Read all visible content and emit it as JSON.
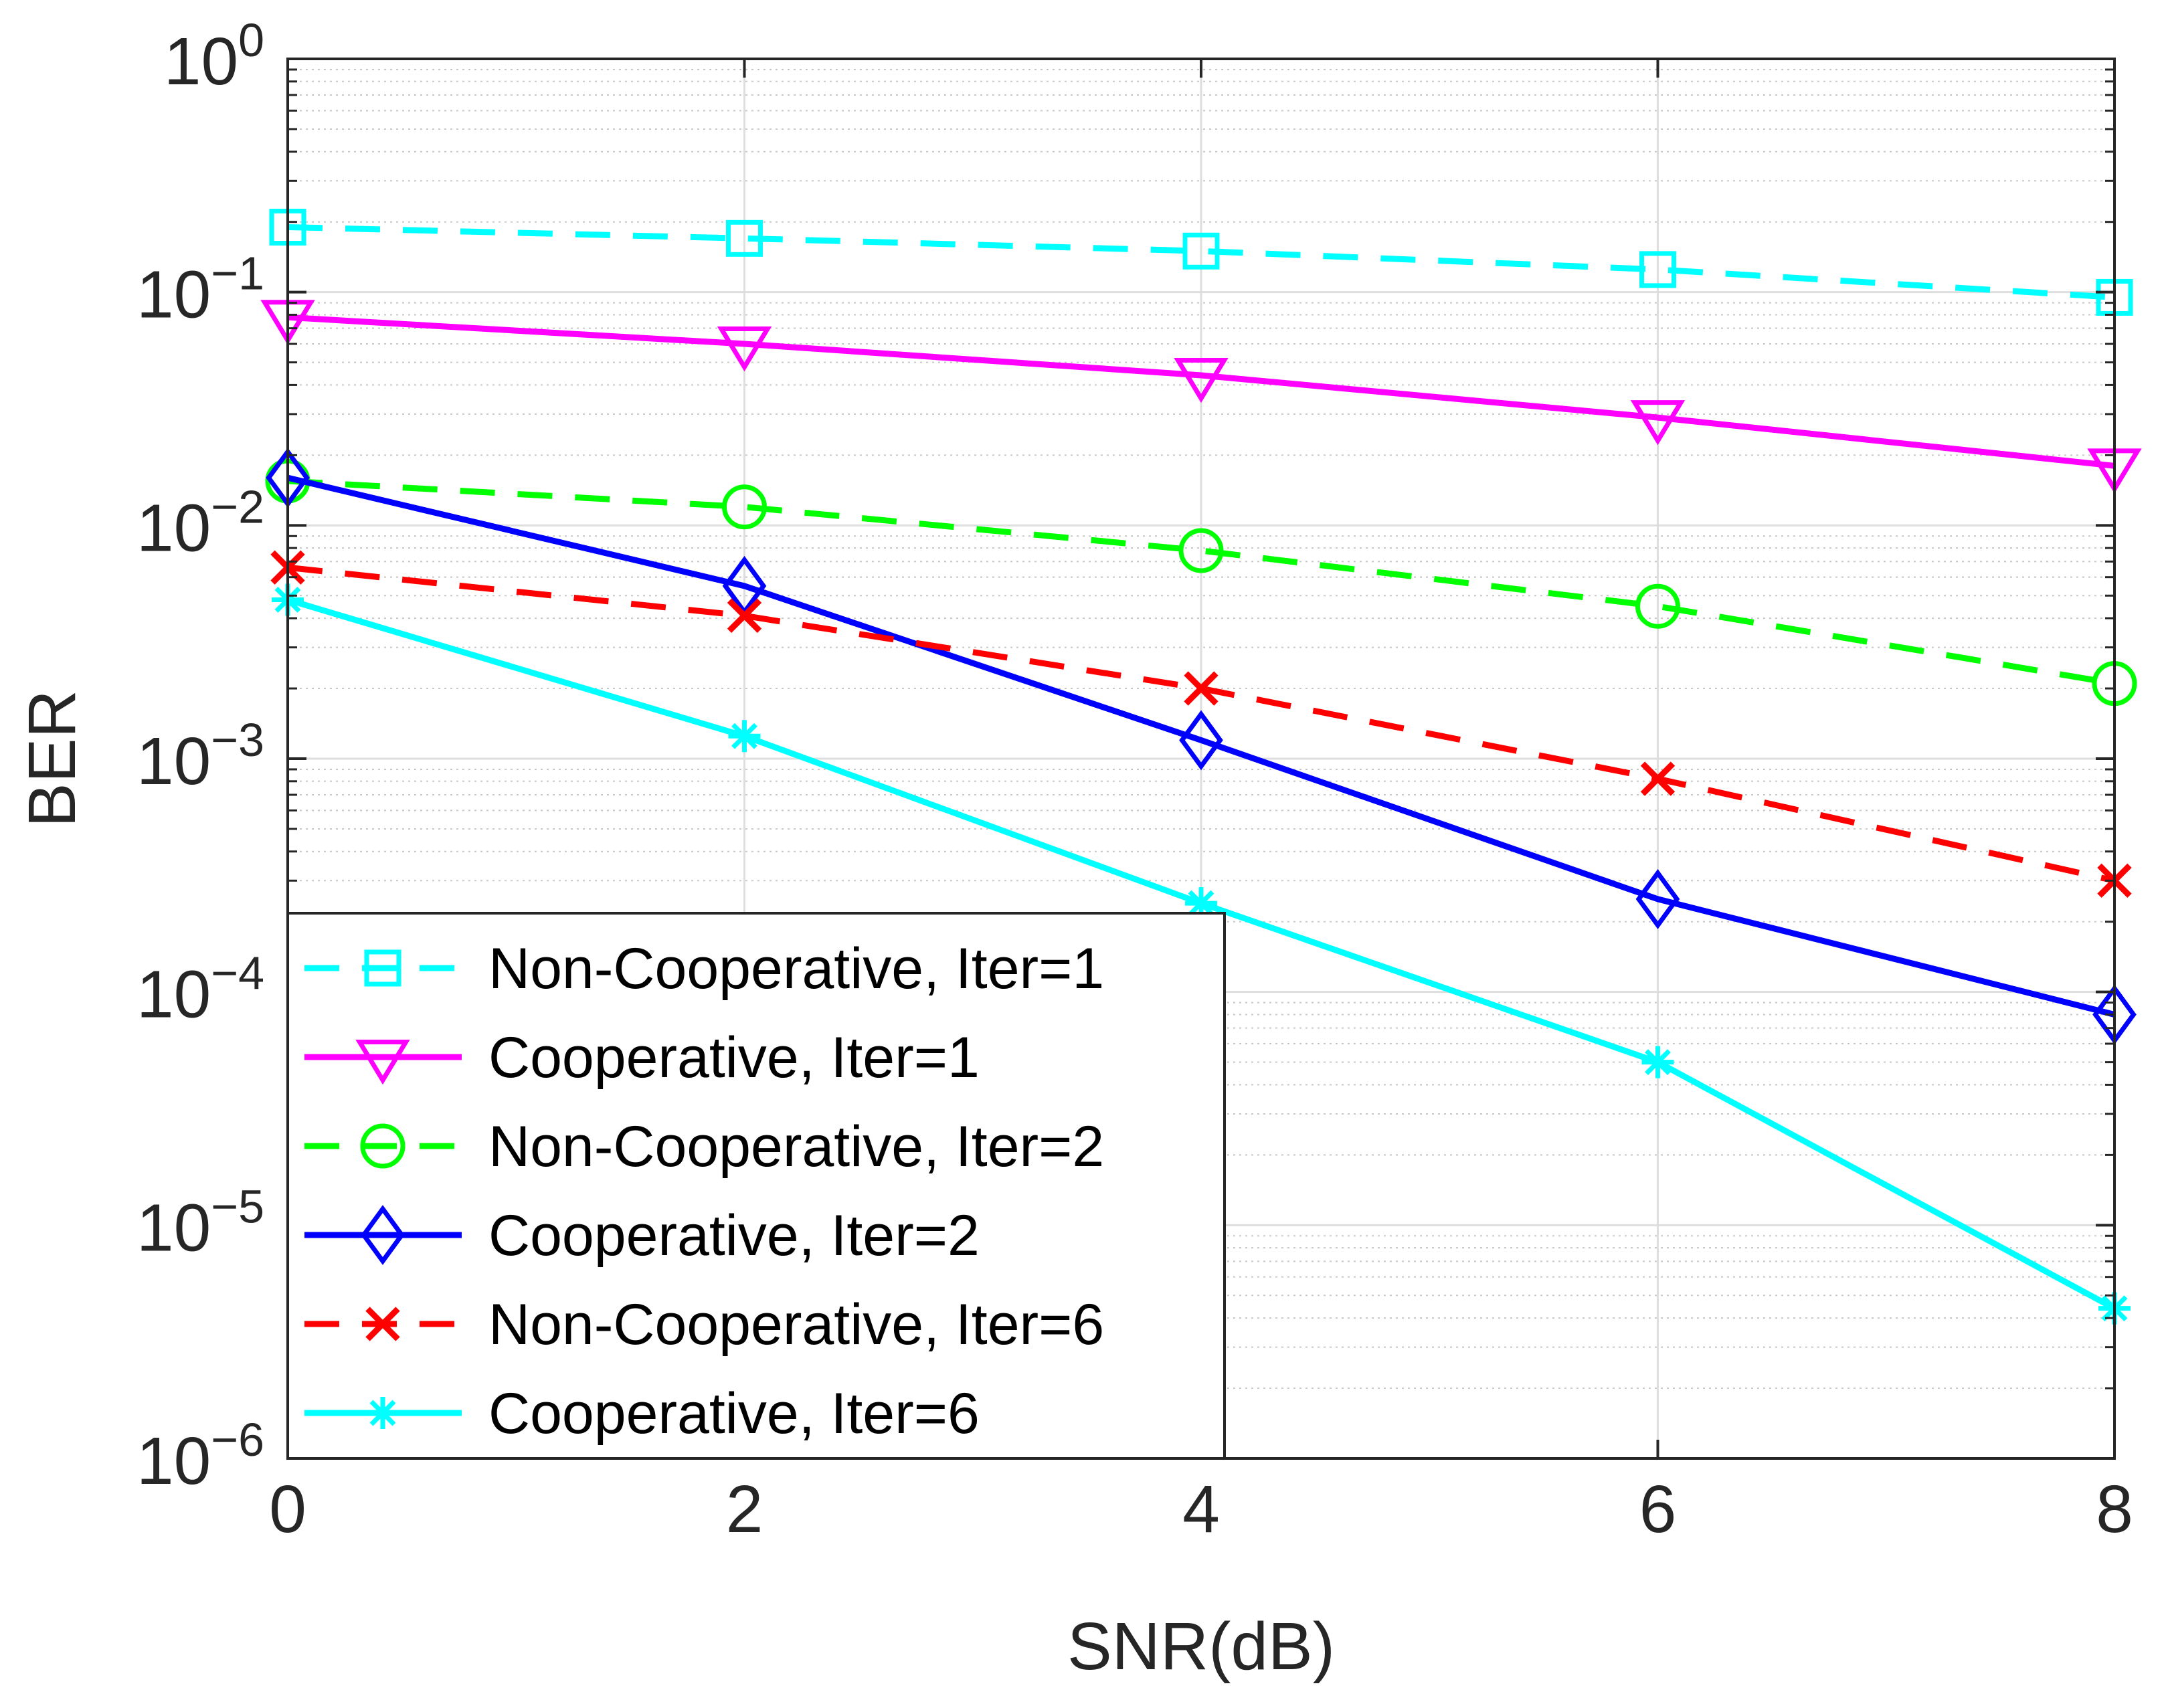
{
  "chart_data": {
    "type": "line",
    "title": "",
    "xlabel": "SNR(dB)",
    "ylabel": "BER",
    "yscale": "log",
    "xlim": [
      0,
      8
    ],
    "ylim": [
      1e-06,
      1
    ],
    "grid": true,
    "minor_grid": true,
    "legend_position": "bottom-left",
    "x": [
      0,
      2,
      4,
      6,
      8
    ],
    "x_ticks": [
      {
        "value": 0,
        "label": "0"
      },
      {
        "value": 2,
        "label": "2"
      },
      {
        "value": 4,
        "label": "4"
      },
      {
        "value": 6,
        "label": "6"
      },
      {
        "value": 8,
        "label": "8"
      }
    ],
    "y_ticks": [
      {
        "value": 1,
        "base": "10",
        "exp": "0"
      },
      {
        "value": 0.1,
        "base": "10",
        "exp": "−1"
      },
      {
        "value": 0.01,
        "base": "10",
        "exp": "−2"
      },
      {
        "value": 0.001,
        "base": "10",
        "exp": "−3"
      },
      {
        "value": 0.0001,
        "base": "10",
        "exp": "−4"
      },
      {
        "value": 1e-05,
        "base": "10",
        "exp": "−5"
      },
      {
        "value": 1e-06,
        "base": "10",
        "exp": "−6"
      }
    ],
    "series": [
      {
        "name": "Non-Cooperative, Iter=1",
        "color": "#00ffff",
        "dash": "dashed",
        "marker": "square",
        "values": [
          0.19,
          0.17,
          0.15,
          0.125,
          0.095
        ]
      },
      {
        "name": "Cooperative, Iter=1",
        "color": "#ff00ff",
        "dash": "solid",
        "marker": "triangle-down",
        "values": [
          0.078,
          0.06,
          0.044,
          0.029,
          0.018
        ]
      },
      {
        "name": "Non-Cooperative, Iter=2",
        "color": "#00ff00",
        "dash": "dashed",
        "marker": "circle",
        "values": [
          0.0155,
          0.012,
          0.0078,
          0.0045,
          0.0021
        ]
      },
      {
        "name": "Cooperative, Iter=2",
        "color": "#0000ff",
        "dash": "solid",
        "marker": "diamond",
        "values": [
          0.016,
          0.0055,
          0.0012,
          0.00025,
          8e-05
        ]
      },
      {
        "name": "Non-Cooperative, Iter=6",
        "color": "#ff0000",
        "dash": "dashed",
        "marker": "x",
        "values": [
          0.0066,
          0.0041,
          0.002,
          0.00082,
          0.0003
        ]
      },
      {
        "name": "Cooperative, Iter=6",
        "color": "#00ffff",
        "dash": "solid",
        "marker": "asterisk",
        "values": [
          0.0048,
          0.00125,
          0.00024,
          5e-05,
          4.4e-06
        ]
      }
    ]
  }
}
